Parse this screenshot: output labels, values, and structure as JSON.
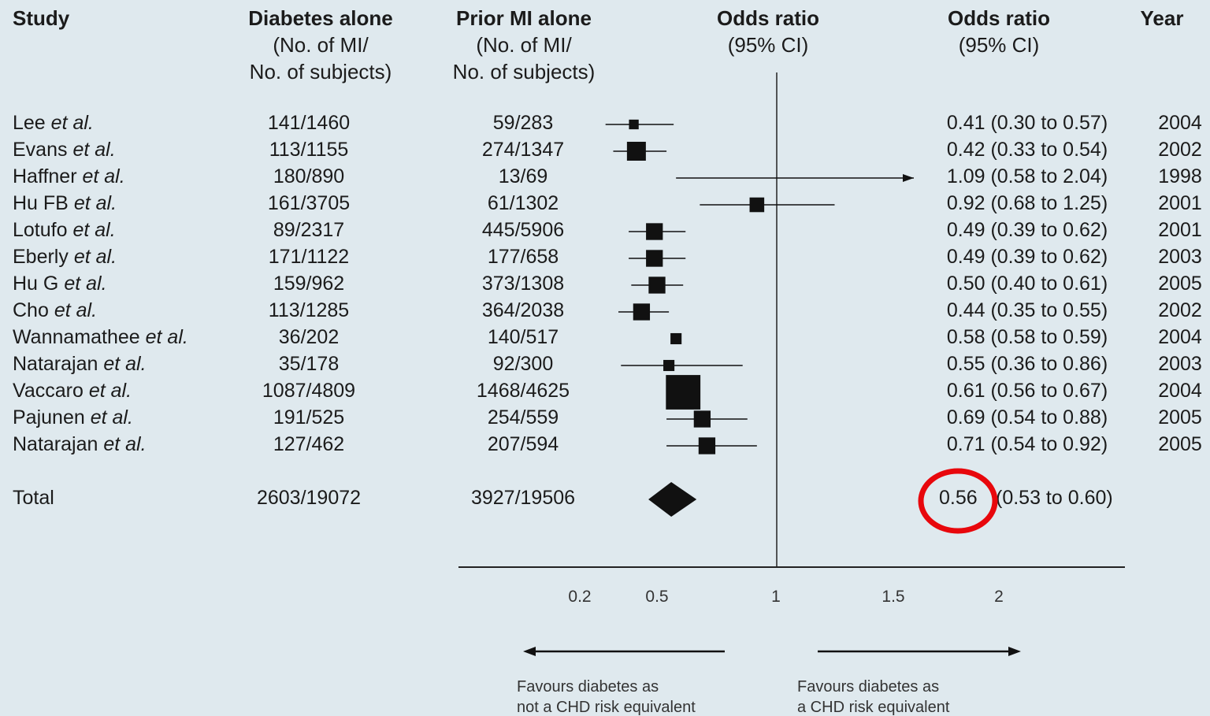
{
  "headers": {
    "study": "Study",
    "diabetes": "Diabetes alone",
    "diabetes_sub1": "(No. of MI/",
    "diabetes_sub2": "No. of subjects)",
    "prior_mi": "Prior MI alone",
    "prior_mi_sub1": "(No. of MI/",
    "prior_mi_sub2": "No. of subjects)",
    "plot": "Odds ratio",
    "plot_sub": "(95% CI)",
    "or": "Odds ratio",
    "or_sub": "(95% CI)",
    "year": "Year"
  },
  "rows": [
    {
      "name": "Lee",
      "etal": "et al.",
      "diabetes": "141/1460",
      "mi": "59/283",
      "or_text": "0.41 (0.30 to 0.57)",
      "year": "2004"
    },
    {
      "name": "Evans",
      "etal": "et al.",
      "diabetes": "113/1155",
      "mi": "274/1347",
      "or_text": "0.42 (0.33 to 0.54)",
      "year": "2002"
    },
    {
      "name": "Haffner",
      "etal": "et al.",
      "diabetes": "180/890",
      "mi": "13/69",
      "or_text": "1.09 (0.58 to 2.04)",
      "year": "1998"
    },
    {
      "name": "Hu FB",
      "etal": "et al.",
      "diabetes": "161/3705",
      "mi": "61/1302",
      "or_text": "0.92 (0.68 to 1.25)",
      "year": "2001"
    },
    {
      "name": "Lotufo",
      "etal": "et al.",
      "diabetes": "89/2317",
      "mi": "445/5906",
      "or_text": "0.49 (0.39 to 0.62)",
      "year": "2001"
    },
    {
      "name": "Eberly",
      "etal": "et al.",
      "diabetes": "171/1122",
      "mi": "177/658",
      "or_text": "0.49 (0.39 to 0.62)",
      "year": "2003"
    },
    {
      "name": "Hu G",
      "etal": "et al.",
      "diabetes": "159/962",
      "mi": "373/1308",
      "or_text": "0.50 (0.40 to 0.61)",
      "year": "2005"
    },
    {
      "name": "Cho",
      "etal": "et al.",
      "diabetes": "113/1285",
      "mi": "364/2038",
      "or_text": "0.44 (0.35 to 0.55)",
      "year": "2002"
    },
    {
      "name": "Wannamathee",
      "etal": "et al.",
      "diabetes": "36/202",
      "mi": "140/517",
      "or_text": "0.58 (0.58 to 0.59)",
      "year": "2004"
    },
    {
      "name": "Natarajan",
      "etal": "et al.",
      "diabetes": "35/178",
      "mi": "92/300",
      "or_text": "0.55 (0.36 to 0.86)",
      "year": "2003"
    },
    {
      "name": "Vaccaro",
      "etal": "et al.",
      "diabetes": "1087/4809",
      "mi": "1468/4625",
      "or_text": "0.61 (0.56 to 0.67)",
      "year": "2004"
    },
    {
      "name": "Pajunen",
      "etal": "et al.",
      "diabetes": "191/525",
      "mi": "254/559",
      "or_text": "0.69 (0.54 to 0.88)",
      "year": "2005"
    },
    {
      "name": "Natarajan",
      "etal": "et al.",
      "diabetes": "127/462",
      "mi": "207/594",
      "or_text": "0.71 (0.54 to 0.92)",
      "year": "2005"
    }
  ],
  "total": {
    "label": "Total",
    "diabetes": "2603/19072",
    "mi": "3927/19506",
    "or_value": "0.56",
    "or_ci": "(0.53 to 0.60)"
  },
  "footnotes": {
    "left1": "Favours diabetes as",
    "left2": "not a CHD risk equivalent",
    "right1": "Favours diabetes as",
    "right2": "a CHD risk equivalent"
  },
  "highlight_color": "#e8070c",
  "marker_color": "#111111",
  "chart_data": {
    "type": "forest",
    "x_ticks": [
      "0.2",
      "0.5",
      "1",
      "1.5",
      "2"
    ],
    "reference_line": 1,
    "studies": [
      {
        "or": 0.41,
        "lo": 0.3,
        "hi": 0.57,
        "weight": 0.35
      },
      {
        "or": 0.42,
        "lo": 0.33,
        "hi": 0.54,
        "weight": 1.0
      },
      {
        "or": 1.09,
        "lo": 0.58,
        "hi": 2.04,
        "weight": 0.0
      },
      {
        "or": 0.92,
        "lo": 0.68,
        "hi": 1.25,
        "weight": 0.7
      },
      {
        "or": 0.49,
        "lo": 0.39,
        "hi": 0.62,
        "weight": 0.85
      },
      {
        "or": 0.49,
        "lo": 0.39,
        "hi": 0.62,
        "weight": 0.85
      },
      {
        "or": 0.5,
        "lo": 0.4,
        "hi": 0.61,
        "weight": 0.85
      },
      {
        "or": 0.44,
        "lo": 0.35,
        "hi": 0.55,
        "weight": 0.85
      },
      {
        "or": 0.58,
        "lo": 0.58,
        "hi": 0.59,
        "weight": 0.45
      },
      {
        "or": 0.55,
        "lo": 0.36,
        "hi": 0.86,
        "weight": 0.45
      },
      {
        "or": 0.61,
        "lo": 0.56,
        "hi": 0.67,
        "weight": 2.1
      },
      {
        "or": 0.69,
        "lo": 0.54,
        "hi": 0.88,
        "weight": 0.85
      },
      {
        "or": 0.71,
        "lo": 0.54,
        "hi": 0.92,
        "weight": 0.85
      }
    ],
    "pooled": {
      "or": 0.56,
      "lo": 0.53,
      "hi": 0.6
    }
  }
}
